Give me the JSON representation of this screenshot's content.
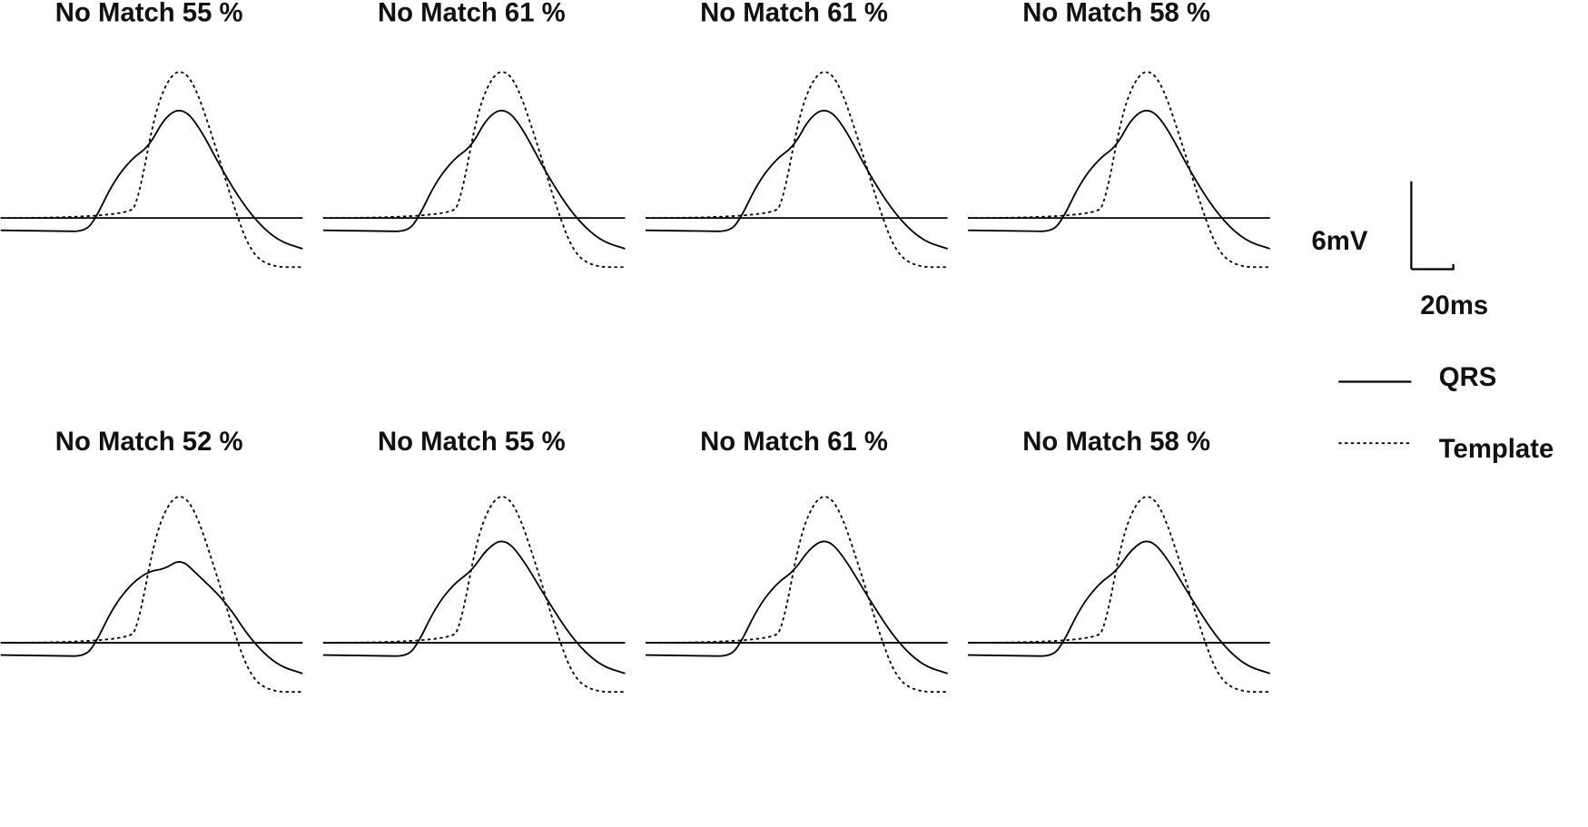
{
  "panels": [
    {
      "title": "No Match 55 %"
    },
    {
      "title": "No Match 61 %"
    },
    {
      "title": "No Match 61 %"
    },
    {
      "title": "No Match 58 %"
    },
    {
      "title": "No Match 52 %"
    },
    {
      "title": "No Match 55 %"
    },
    {
      "title": "No Match 61 %"
    },
    {
      "title": "No Match 58 %"
    }
  ],
  "scale": {
    "voltage": "6mV",
    "time": "20ms"
  },
  "legend": [
    {
      "label": "QRS"
    },
    {
      "label": "Template"
    }
  ]
}
